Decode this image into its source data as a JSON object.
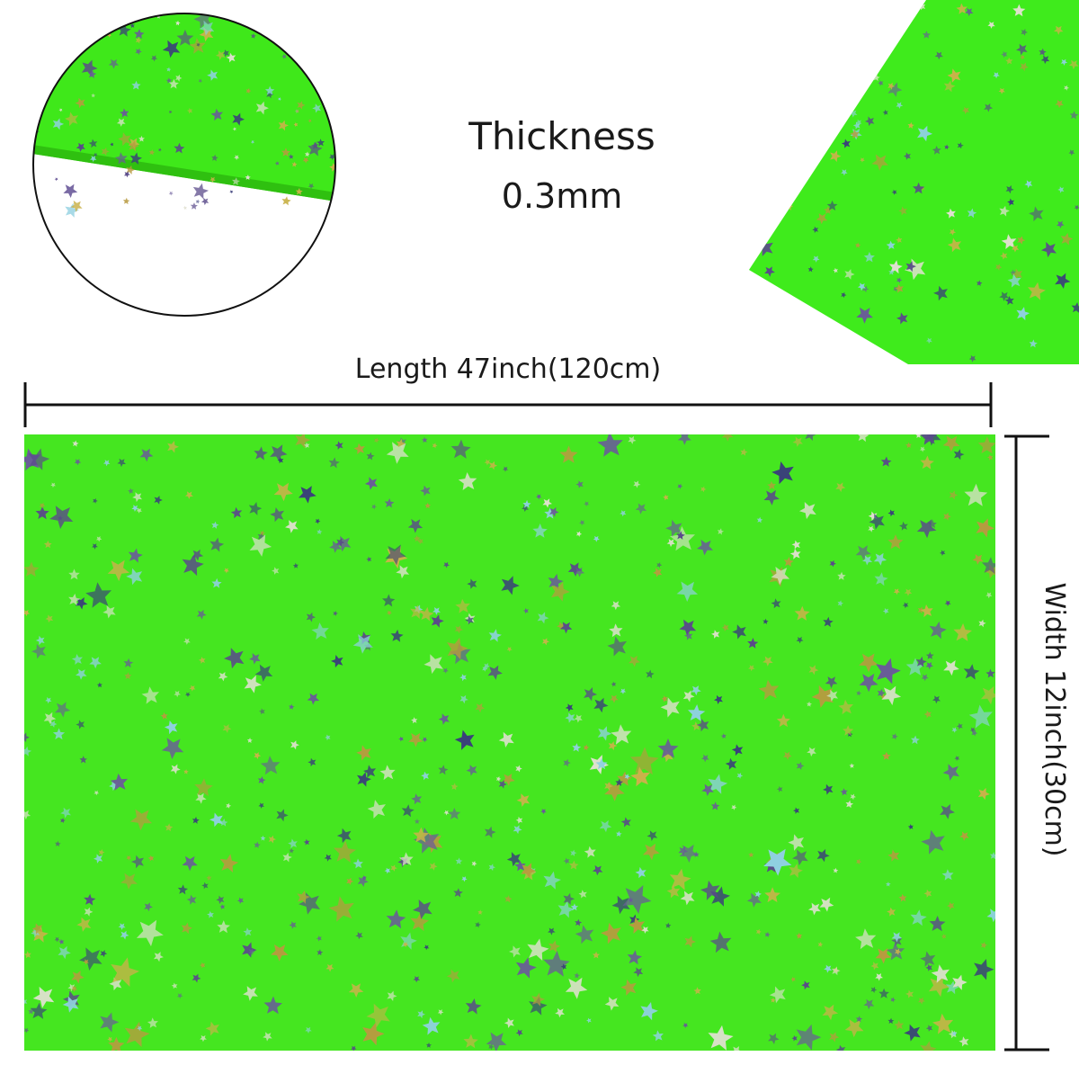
{
  "thickness": {
    "label": "Thickness",
    "value": "0.3mm"
  },
  "length_label": "Length 47inch(120cm)",
  "width_label": "Width 12inch(30cm)"
}
